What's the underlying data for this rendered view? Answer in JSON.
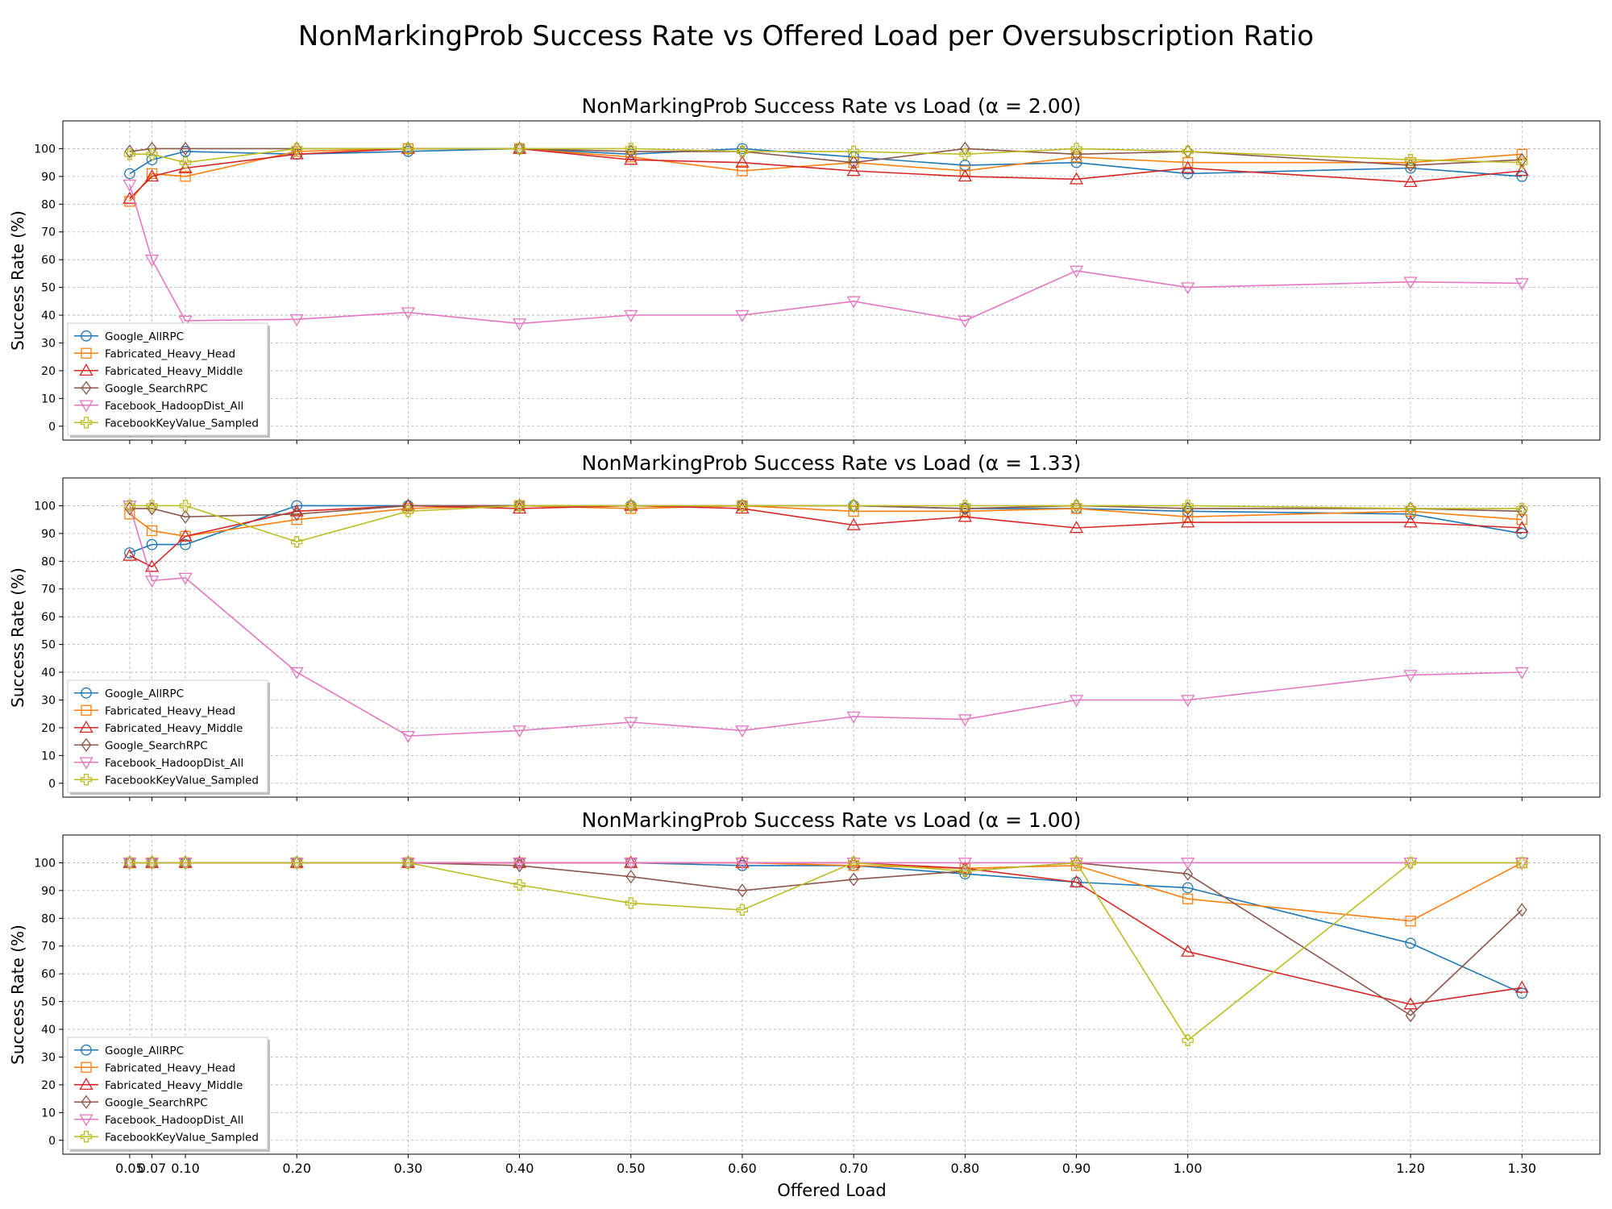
{
  "figure": {
    "suptitle": "NonMarkingProb Success Rate vs Offered Load per Oversubscription Ratio",
    "xlabel": "Offered Load",
    "ylabel": "Success Rate (%)"
  },
  "chart_data": [
    {
      "type": "line",
      "title": "NonMarkingProb Success Rate vs Load (α = 2.00)",
      "xlabel": "",
      "ylabel": "Success Rate (%)",
      "x": [
        0.05,
        0.07,
        0.1,
        0.2,
        0.3,
        0.4,
        0.5,
        0.6,
        0.7,
        0.8,
        0.9,
        1.0,
        1.2,
        1.3
      ],
      "xtick_labels": [
        "0.05",
        "0.07",
        "0.10",
        "0.20",
        "0.30",
        "0.40",
        "0.50",
        "0.60",
        "0.70",
        "0.80",
        "0.90",
        "1.00",
        "1.20",
        "1.30"
      ],
      "yticks": [
        0,
        10,
        20,
        30,
        40,
        50,
        60,
        70,
        80,
        90,
        100
      ],
      "xlim": [
        -0.01,
        1.37
      ],
      "ylim": [
        -5,
        110
      ],
      "grid": true,
      "legend_position": "lower-left",
      "series": [
        {
          "name": "Google_AllRPC",
          "color": "#1f77b4",
          "marker": "circle",
          "values": [
            91,
            96,
            99,
            98,
            99,
            100,
            98,
            100,
            97,
            94,
            95,
            91,
            93,
            90
          ]
        },
        {
          "name": "Fabricated_Heavy_Head",
          "color": "#ff7f0e",
          "marker": "square",
          "values": [
            81,
            91,
            90,
            99,
            100,
            100,
            97,
            92,
            95,
            92,
            97,
            95,
            95,
            98
          ]
        },
        {
          "name": "Fabricated_Heavy_Middle",
          "color": "#d62728",
          "marker": "triangle-up",
          "values": [
            82,
            90,
            93,
            98,
            100,
            100,
            96,
            95,
            92,
            90,
            89,
            93,
            88,
            92
          ]
        },
        {
          "name": "Google_SearchRPC",
          "color": "#8c564b",
          "marker": "diamond",
          "values": [
            99,
            100,
            100,
            100,
            100,
            100,
            99,
            99,
            95,
            100,
            98,
            99,
            94,
            96
          ]
        },
        {
          "name": "Facebook_HadoopDist_All",
          "color": "#e377c2",
          "marker": "triangle-down",
          "values": [
            87,
            60,
            38,
            38.5,
            41,
            37,
            40,
            40,
            45,
            38,
            56,
            50,
            52,
            51.5
          ]
        },
        {
          "name": "FacebookKeyValue_Sampled",
          "color": "#bcbd22",
          "marker": "plus",
          "values": [
            98,
            98,
            95,
            100,
            100,
            100,
            100,
            99,
            99,
            98,
            100,
            99,
            96,
            95
          ]
        }
      ]
    },
    {
      "type": "line",
      "title": "NonMarkingProb Success Rate vs Load (α = 1.33)",
      "xlabel": "",
      "ylabel": "Success Rate (%)",
      "x": [
        0.05,
        0.07,
        0.1,
        0.2,
        0.3,
        0.4,
        0.5,
        0.6,
        0.7,
        0.8,
        0.9,
        1.0,
        1.2,
        1.3
      ],
      "xtick_labels": [
        "0.05",
        "0.07",
        "0.10",
        "0.20",
        "0.30",
        "0.40",
        "0.50",
        "0.60",
        "0.70",
        "0.80",
        "0.90",
        "1.00",
        "1.20",
        "1.30"
      ],
      "yticks": [
        0,
        10,
        20,
        30,
        40,
        50,
        60,
        70,
        80,
        90,
        100
      ],
      "xlim": [
        -0.01,
        1.37
      ],
      "ylim": [
        -5,
        110
      ],
      "grid": true,
      "legend_position": "lower-left",
      "series": [
        {
          "name": "Google_AllRPC",
          "color": "#1f77b4",
          "marker": "circle",
          "values": [
            83,
            86,
            86,
            100,
            100,
            100,
            100,
            100,
            100,
            99,
            99,
            98,
            97,
            90
          ]
        },
        {
          "name": "Fabricated_Heavy_Head",
          "color": "#ff7f0e",
          "marker": "square",
          "values": [
            97,
            91,
            89,
            95,
            99,
            100,
            99,
            100,
            98,
            98,
            99,
            96,
            98,
            95
          ]
        },
        {
          "name": "Fabricated_Heavy_Middle",
          "color": "#d62728",
          "marker": "triangle-up",
          "values": [
            82,
            78,
            89,
            98,
            100,
            99,
            100,
            99,
            93,
            96,
            92,
            94,
            94,
            92
          ]
        },
        {
          "name": "Google_SearchRPC",
          "color": "#8c564b",
          "marker": "diamond",
          "values": [
            99,
            99,
            96,
            97,
            100,
            100,
            100,
            100,
            100,
            99,
            100,
            99,
            99,
            98
          ]
        },
        {
          "name": "Facebook_HadoopDist_All",
          "color": "#e377c2",
          "marker": "triangle-down",
          "values": [
            100,
            73,
            74,
            40,
            17,
            19,
            22,
            19,
            24,
            23,
            30,
            30,
            39,
            40
          ]
        },
        {
          "name": "FacebookKeyValue_Sampled",
          "color": "#bcbd22",
          "marker": "plus",
          "values": [
            100,
            100,
            100,
            87,
            98,
            100,
            100,
            100,
            100,
            100,
            100,
            100,
            99,
            99
          ]
        }
      ]
    },
    {
      "type": "line",
      "title": "NonMarkingProb Success Rate vs Load (α = 1.00)",
      "xlabel": "Offered Load",
      "ylabel": "Success Rate (%)",
      "x": [
        0.05,
        0.07,
        0.1,
        0.2,
        0.3,
        0.4,
        0.5,
        0.6,
        0.7,
        0.8,
        0.9,
        1.0,
        1.2,
        1.3
      ],
      "xtick_labels": [
        "0.05",
        "0.07",
        "0.10",
        "0.20",
        "0.30",
        "0.40",
        "0.50",
        "0.60",
        "0.70",
        "0.80",
        "0.90",
        "1.00",
        "1.20",
        "1.30"
      ],
      "yticks": [
        0,
        10,
        20,
        30,
        40,
        50,
        60,
        70,
        80,
        90,
        100
      ],
      "xlim": [
        -0.01,
        1.37
      ],
      "ylim": [
        -5,
        110
      ],
      "grid": true,
      "legend_position": "lower-left",
      "series": [
        {
          "name": "Google_AllRPC",
          "color": "#1f77b4",
          "marker": "circle",
          "values": [
            100,
            100,
            100,
            100,
            100,
            100,
            100,
            99,
            99,
            96,
            93,
            91,
            71,
            53
          ]
        },
        {
          "name": "Fabricated_Heavy_Head",
          "color": "#ff7f0e",
          "marker": "square",
          "values": [
            100,
            100,
            100,
            100,
            100,
            100,
            100,
            100,
            99,
            98,
            99,
            87,
            79,
            100
          ]
        },
        {
          "name": "Fabricated_Heavy_Middle",
          "color": "#d62728",
          "marker": "triangle-up",
          "values": [
            100,
            100,
            100,
            100,
            100,
            100,
            100,
            100,
            100,
            98,
            93,
            68,
            49,
            55
          ]
        },
        {
          "name": "Google_SearchRPC",
          "color": "#8c564b",
          "marker": "diamond",
          "values": [
            100,
            100,
            100,
            100,
            100,
            99,
            95,
            90,
            94,
            97,
            100,
            96,
            45,
            83
          ]
        },
        {
          "name": "Facebook_HadoopDist_All",
          "color": "#e377c2",
          "marker": "triangle-down",
          "values": [
            100,
            100,
            100,
            100,
            100,
            100,
            100,
            100,
            100,
            100,
            100,
            100,
            100,
            100
          ]
        },
        {
          "name": "FacebookKeyValue_Sampled",
          "color": "#bcbd22",
          "marker": "plus",
          "values": [
            100,
            100,
            100,
            100,
            100,
            92,
            85.5,
            83,
            100,
            97,
            100,
            36,
            100,
            100
          ]
        }
      ]
    }
  ]
}
